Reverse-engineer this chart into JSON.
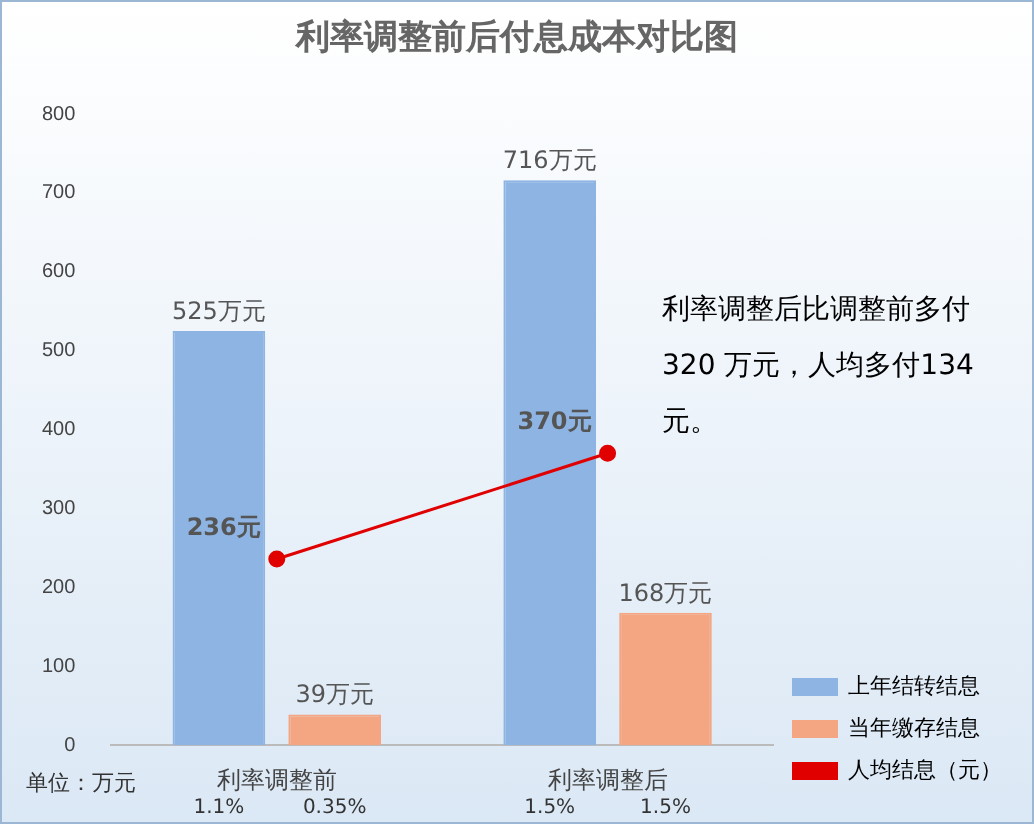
{
  "chart_data": {
    "type": "bar",
    "title": "利率调整前后付息成本对比图",
    "categories": [
      "利率调整前",
      "利率调整后"
    ],
    "series": [
      {
        "name": "上年结转结息",
        "color": "#8db4e2",
        "values": [
          525,
          716
        ],
        "value_labels": [
          "525万元",
          "716万元"
        ]
      },
      {
        "name": "当年缴存结息",
        "color": "#f4a582",
        "values": [
          39,
          168
        ],
        "value_labels": [
          "39万元",
          "168万元"
        ]
      },
      {
        "name": "人均结息（元）",
        "type": "line",
        "color": "#e00000",
        "values": [
          236,
          370
        ],
        "value_labels": [
          "236元",
          "370元"
        ],
        "marker": "circle"
      }
    ],
    "ylim": [
      0,
      800
    ],
    "yticks": [
      0,
      100,
      200,
      300,
      400,
      500,
      600,
      700,
      800
    ],
    "grid": false,
    "legend": "bottom right",
    "annotations": [
      "利率调整后比调整前多付 320 万元，人均多付134 元。",
      "单位：万元",
      "1.1%",
      "0.35%",
      "1.5%",
      "1.5%"
    ]
  }
}
